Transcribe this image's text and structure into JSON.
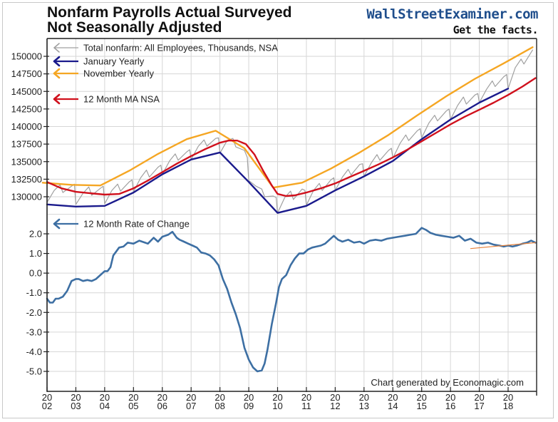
{
  "header": {
    "title_line1": "Nonfarm Payrolls Actual Surveyed",
    "title_line2": "Not Seasonally Adjusted",
    "brand": "WallStreetExaminer.com",
    "tagline": "Get the facts."
  },
  "credit": "Chart generated by Economagic.com",
  "colors": {
    "total": "#a0a0a0",
    "january": "#1a1a8c",
    "november": "#f5a623",
    "ma": "#d0101c",
    "roc": "#3d6fa3",
    "trend": "#e8823a",
    "grid": "#d6d6d6"
  },
  "chart_data": [
    {
      "type": "line",
      "title": "Nonfarm Payrolls Actual Surveyed Not Seasonally Adjusted",
      "xlabel": "",
      "ylabel": "",
      "ylim": [
        127500,
        152000
      ],
      "xlim": [
        2002.0,
        2019.0
      ],
      "grid": true,
      "legend_placement": "top-left",
      "yticks": [
        "150000",
        "147500",
        "145000",
        "142500",
        "140000",
        "137500",
        "135000",
        "132500",
        "130000"
      ],
      "yticks_values": [
        150000,
        147500,
        145000,
        142500,
        140000,
        137500,
        135000,
        132500,
        130000
      ],
      "series": [
        {
          "name": "Total nonfarm: All Employees, Thousands, NSA",
          "key": "total",
          "x": [
            2002.0,
            2002.25,
            2002.45,
            2002.55,
            2002.85,
            2002.95,
            2003.0,
            2003.25,
            2003.45,
            2003.55,
            2003.85,
            2003.95,
            2004.0,
            2004.25,
            2004.45,
            2004.55,
            2004.85,
            2004.95,
            2005.0,
            2005.25,
            2005.45,
            2005.55,
            2005.85,
            2005.95,
            2006.0,
            2006.25,
            2006.45,
            2006.55,
            2006.85,
            2006.95,
            2007.0,
            2007.25,
            2007.45,
            2007.55,
            2007.85,
            2007.95,
            2008.0,
            2008.25,
            2008.45,
            2008.55,
            2008.85,
            2008.95,
            2009.0,
            2009.25,
            2009.45,
            2009.55,
            2009.85,
            2009.95,
            2010.0,
            2010.25,
            2010.45,
            2010.55,
            2010.85,
            2010.95,
            2011.0,
            2011.25,
            2011.45,
            2011.55,
            2011.85,
            2011.95,
            2012.0,
            2012.25,
            2012.45,
            2012.55,
            2012.85,
            2012.95,
            2013.0,
            2013.25,
            2013.45,
            2013.55,
            2013.85,
            2013.95,
            2014.0,
            2014.25,
            2014.45,
            2014.55,
            2014.85,
            2014.95,
            2015.0,
            2015.25,
            2015.45,
            2015.55,
            2015.85,
            2015.95,
            2016.0,
            2016.25,
            2016.45,
            2016.55,
            2016.85,
            2016.95,
            2017.0,
            2017.25,
            2017.45,
            2017.55,
            2017.85,
            2017.95,
            2018.0,
            2018.25,
            2018.45,
            2018.55,
            2018.85
          ],
          "values": [
            129200,
            130900,
            131700,
            130600,
            131500,
            131800,
            128900,
            130500,
            131400,
            130200,
            131200,
            131500,
            129000,
            130900,
            131800,
            130800,
            132100,
            132400,
            130700,
            132700,
            133800,
            132800,
            134200,
            134500,
            133200,
            135100,
            136100,
            135200,
            136400,
            136700,
            135300,
            137200,
            138100,
            137200,
            138300,
            138400,
            136200,
            138000,
            138300,
            137100,
            136600,
            135600,
            132300,
            131500,
            131100,
            130000,
            130100,
            129900,
            127700,
            129900,
            130800,
            129600,
            131100,
            130900,
            128800,
            130900,
            131900,
            130900,
            132400,
            132700,
            130900,
            132800,
            133900,
            133100,
            134600,
            134700,
            132900,
            134800,
            136000,
            135200,
            136600,
            136900,
            135500,
            137600,
            138800,
            138000,
            139400,
            139700,
            138400,
            140500,
            141600,
            140800,
            142200,
            142500,
            141000,
            143000,
            144200,
            143200,
            144500,
            144700,
            143400,
            145300,
            146500,
            145700,
            147100,
            147400,
            145400,
            148400,
            149600,
            148900,
            150900
          ]
        },
        {
          "name": "January Yearly",
          "key": "january",
          "x": [
            2002.0,
            2003.0,
            2004.0,
            2005.0,
            2006.0,
            2007.0,
            2008.0,
            2009.0,
            2010.0,
            2011.0,
            2012.0,
            2013.0,
            2014.0,
            2015.0,
            2016.0,
            2017.0,
            2018.0
          ],
          "values": [
            128900,
            128600,
            128700,
            130600,
            133200,
            135300,
            136300,
            132100,
            127700,
            128700,
            130900,
            132900,
            135100,
            138200,
            141000,
            143400,
            145400
          ]
        },
        {
          "name": "November Yearly",
          "key": "november",
          "x": [
            2001.85,
            2002.85,
            2003.85,
            2004.85,
            2005.85,
            2006.85,
            2007.85,
            2008.85,
            2009.85,
            2010.85,
            2011.85,
            2012.85,
            2013.85,
            2014.85,
            2015.85,
            2016.85,
            2017.85,
            2018.85
          ],
          "values": [
            132000,
            131700,
            131600,
            133700,
            136100,
            138200,
            139400,
            136900,
            131300,
            132000,
            134000,
            136300,
            138800,
            141600,
            144300,
            146800,
            149000,
            151300
          ]
        },
        {
          "name": "12 Month MA NSA",
          "key": "ma",
          "x": [
            2002.0,
            2002.5,
            2003.0,
            2003.5,
            2004.0,
            2004.5,
            2005.0,
            2005.5,
            2006.0,
            2006.5,
            2007.0,
            2007.5,
            2008.0,
            2008.3,
            2008.6,
            2008.9,
            2009.2,
            2009.5,
            2009.8,
            2010.0,
            2010.3,
            2010.6,
            2011.0,
            2011.5,
            2012.0,
            2012.5,
            2013.0,
            2013.5,
            2014.0,
            2014.5,
            2015.0,
            2015.5,
            2016.0,
            2016.5,
            2017.0,
            2017.5,
            2018.0,
            2018.5,
            2018.95
          ],
          "values": [
            132100,
            131200,
            130700,
            130500,
            130300,
            130400,
            131200,
            132300,
            133500,
            134700,
            135800,
            136800,
            137700,
            138000,
            138000,
            137500,
            136000,
            133700,
            131600,
            130400,
            130100,
            130200,
            130600,
            131200,
            131900,
            132800,
            133700,
            134600,
            135600,
            136700,
            137900,
            139100,
            140300,
            141400,
            142400,
            143400,
            144500,
            145700,
            146900
          ]
        },
        {
          "name": "12 Month Rate of Change",
          "key": "roc",
          "ylim": [
            -6.0,
            2.7
          ],
          "yticks": [
            "2.0",
            "1.0",
            "0.0",
            "-1.0",
            "-2.0",
            "-3.0",
            "-4.0",
            "-5.0"
          ],
          "yticks_values": [
            2.0,
            1.0,
            0.0,
            -1.0,
            -2.0,
            -3.0,
            -4.0,
            -5.0
          ],
          "x": [
            2002.0,
            2002.1,
            2002.2,
            2002.3,
            2002.4,
            2002.55,
            2002.7,
            2002.85,
            2003.0,
            2003.1,
            2003.25,
            2003.4,
            2003.55,
            2003.7,
            2003.85,
            2004.0,
            2004.1,
            2004.2,
            2004.3,
            2004.4,
            2004.5,
            2004.65,
            2004.8,
            2005.0,
            2005.2,
            2005.4,
            2005.5,
            2005.7,
            2005.85,
            2006.0,
            2006.2,
            2006.35,
            2006.5,
            2006.6,
            2006.75,
            2006.9,
            2007.05,
            2007.2,
            2007.35,
            2007.5,
            2007.65,
            2007.8,
            2007.95,
            2008.1,
            2008.25,
            2008.4,
            2008.55,
            2008.7,
            2008.85,
            2009.0,
            2009.15,
            2009.3,
            2009.45,
            2009.55,
            2009.65,
            2009.8,
            2009.95,
            2010.05,
            2010.15,
            2010.3,
            2010.45,
            2010.6,
            2010.75,
            2010.9,
            2011.05,
            2011.2,
            2011.35,
            2011.5,
            2011.65,
            2011.8,
            2011.95,
            2012.1,
            2012.25,
            2012.45,
            2012.65,
            2012.85,
            2013.0,
            2013.2,
            2013.4,
            2013.6,
            2013.8,
            2014.0,
            2014.2,
            2014.4,
            2014.6,
            2014.8,
            2015.0,
            2015.15,
            2015.3,
            2015.5,
            2015.7,
            2015.9,
            2016.1,
            2016.3,
            2016.5,
            2016.7,
            2016.9,
            2017.1,
            2017.3,
            2017.5,
            2017.7,
            2017.85,
            2018.0,
            2018.15,
            2018.3,
            2018.5,
            2018.65,
            2018.8,
            2018.95
          ],
          "values": [
            -1.3,
            -1.5,
            -1.5,
            -1.3,
            -1.3,
            -1.2,
            -0.9,
            -0.4,
            -0.3,
            -0.3,
            -0.4,
            -0.35,
            -0.4,
            -0.3,
            -0.1,
            0.1,
            0.1,
            0.3,
            0.9,
            1.1,
            1.3,
            1.35,
            1.55,
            1.5,
            1.65,
            1.55,
            1.5,
            1.8,
            1.6,
            1.85,
            1.95,
            2.1,
            1.8,
            1.7,
            1.6,
            1.5,
            1.4,
            1.3,
            1.05,
            1.0,
            0.9,
            0.7,
            0.4,
            -0.3,
            -0.8,
            -1.5,
            -2.1,
            -2.8,
            -3.8,
            -4.4,
            -4.8,
            -5.0,
            -4.95,
            -4.6,
            -3.9,
            -2.6,
            -1.5,
            -0.7,
            -0.3,
            -0.1,
            0.4,
            0.75,
            1.0,
            1.0,
            1.2,
            1.3,
            1.35,
            1.4,
            1.5,
            1.7,
            1.9,
            1.7,
            1.6,
            1.7,
            1.55,
            1.6,
            1.5,
            1.65,
            1.7,
            1.65,
            1.75,
            1.8,
            1.85,
            1.9,
            1.95,
            2.0,
            2.3,
            2.2,
            2.05,
            1.95,
            1.9,
            1.85,
            1.8,
            1.9,
            1.65,
            1.75,
            1.55,
            1.5,
            1.55,
            1.45,
            1.4,
            1.35,
            1.4,
            1.35,
            1.4,
            1.5,
            1.55,
            1.65,
            1.55
          ]
        },
        {
          "name": "Trend line",
          "key": "trend",
          "x": [
            2016.7,
            2018.95
          ],
          "values": [
            1.25,
            1.55
          ]
        }
      ],
      "xticks": [
        {
          "top": "20",
          "bottom": "02",
          "value": 2002
        },
        {
          "top": "20",
          "bottom": "03",
          "value": 2003
        },
        {
          "top": "20",
          "bottom": "04",
          "value": 2004
        },
        {
          "top": "20",
          "bottom": "05",
          "value": 2005
        },
        {
          "top": "20",
          "bottom": "06",
          "value": 2006
        },
        {
          "top": "20",
          "bottom": "07",
          "value": 2007
        },
        {
          "top": "20",
          "bottom": "08",
          "value": 2008
        },
        {
          "top": "20",
          "bottom": "09",
          "value": 2009
        },
        {
          "top": "20",
          "bottom": "10",
          "value": 2010
        },
        {
          "top": "20",
          "bottom": "11",
          "value": 2011
        },
        {
          "top": "20",
          "bottom": "12",
          "value": 2012
        },
        {
          "top": "20",
          "bottom": "13",
          "value": 2013
        },
        {
          "top": "20",
          "bottom": "14",
          "value": 2014
        },
        {
          "top": "20",
          "bottom": "15",
          "value": 2015
        },
        {
          "top": "20",
          "bottom": "16",
          "value": 2016
        },
        {
          "top": "20",
          "bottom": "17",
          "value": 2017
        },
        {
          "top": "20",
          "bottom": "18",
          "value": 2018
        }
      ],
      "legend": [
        {
          "label": "Total nonfarm: All Employees, Thousands, NSA",
          "key": "total"
        },
        {
          "label": "January Yearly",
          "key": "january"
        },
        {
          "label": "November Yearly",
          "key": "november"
        },
        {
          "label": "12 Month MA NSA",
          "key": "ma"
        },
        {
          "label": "12 Month Rate of Change",
          "key": "roc"
        }
      ]
    }
  ]
}
